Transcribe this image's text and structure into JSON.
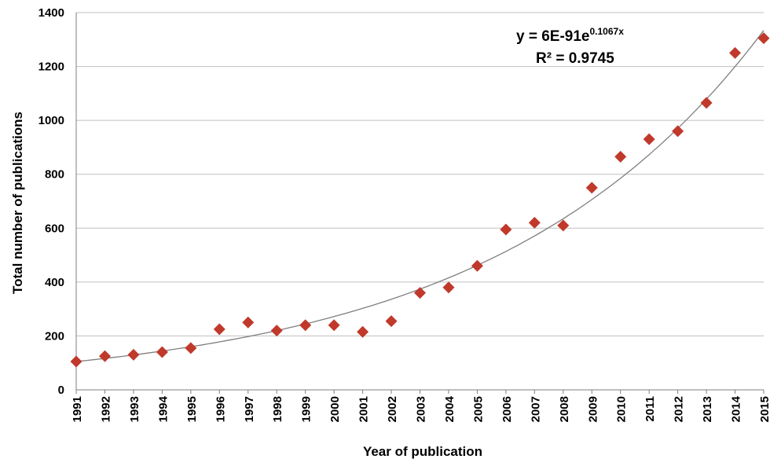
{
  "chart_data": {
    "type": "scatter",
    "title": "",
    "xlabel": "Year of publication",
    "ylabel": "Total number of publications",
    "ylim": [
      0,
      1400
    ],
    "yticks": [
      0,
      200,
      400,
      600,
      800,
      1000,
      1200,
      1400
    ],
    "grid": true,
    "legend": "none",
    "colors": {
      "marker": "#c0392b",
      "trendline": "#7f7f7f",
      "grid": "#bfbfbf"
    },
    "x": [
      1991,
      1992,
      1993,
      1994,
      1995,
      1996,
      1997,
      1998,
      1999,
      2000,
      2001,
      2002,
      2003,
      2004,
      2005,
      2006,
      2007,
      2008,
      2009,
      2010,
      2011,
      2012,
      2013,
      2014,
      2015
    ],
    "y": [
      105,
      125,
      130,
      140,
      155,
      225,
      250,
      220,
      240,
      240,
      215,
      255,
      360,
      380,
      460,
      595,
      620,
      610,
      750,
      865,
      930,
      960,
      1065,
      1250,
      1305
    ],
    "trendline": {
      "type": "exponential",
      "equation_prefix": "y = 6E-91e",
      "equation_exponent": "0.1067x",
      "r_squared_label": "R² = 0.9745"
    }
  }
}
